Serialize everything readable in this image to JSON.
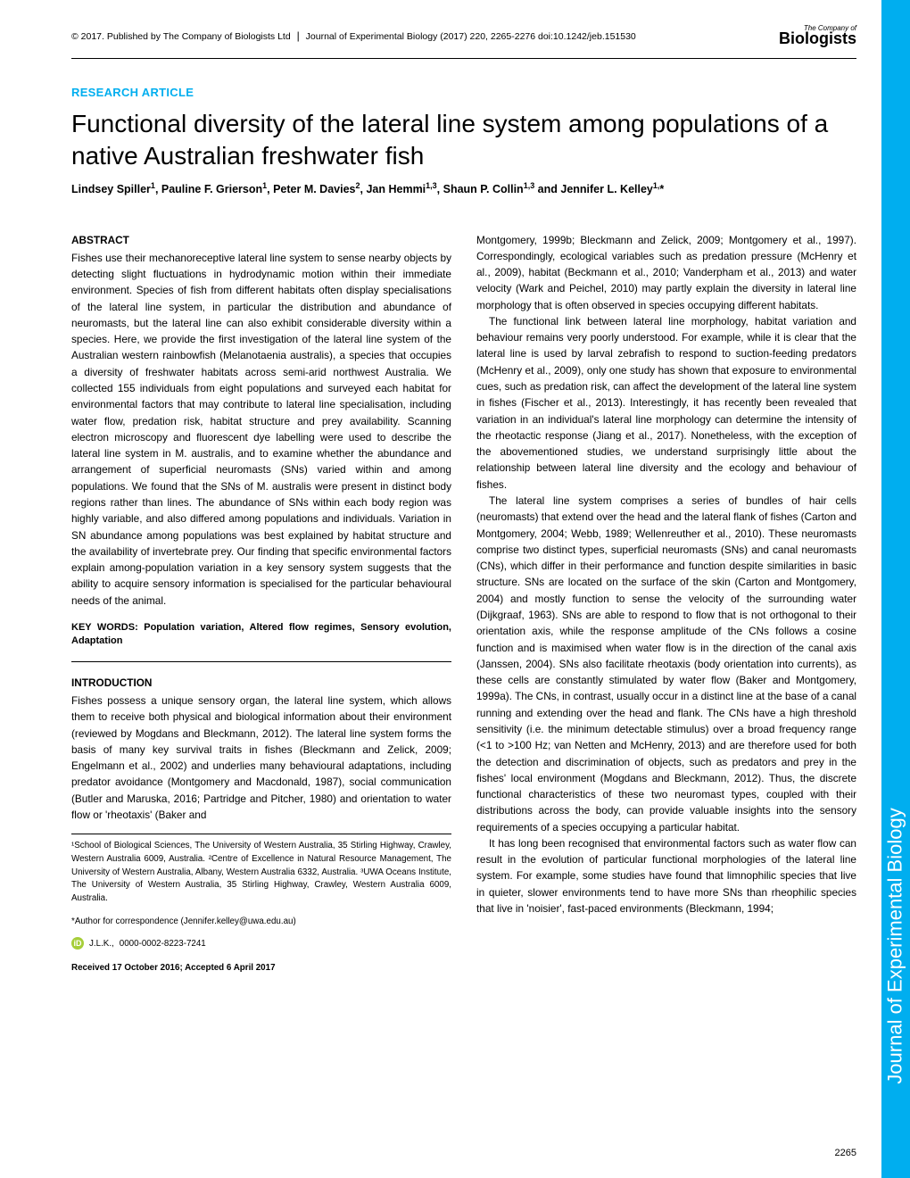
{
  "header": {
    "copyright": "© 2017. Published by The Company of Biologists Ltd",
    "citation": "Journal of Experimental Biology (2017) 220, 2265-2276 doi:10.1242/jeb.151530",
    "logo_small": "The Company of",
    "logo_big": "Biologists"
  },
  "article_type": "RESEARCH ARTICLE",
  "title": "Functional diversity of the lateral line system among populations of a native Australian freshwater fish",
  "authors_html": "Lindsey Spiller¹, Pauline F. Grierson¹, Peter M. Davies², Jan Hemmi¹,³, Shaun P. Collin¹,³ and Jennifer L. Kelley¹,*",
  "abstract_head": "ABSTRACT",
  "abstract": "Fishes use their mechanoreceptive lateral line system to sense nearby objects by detecting slight fluctuations in hydrodynamic motion within their immediate environment. Species of fish from different habitats often display specialisations of the lateral line system, in particular the distribution and abundance of neuromasts, but the lateral line can also exhibit considerable diversity within a species. Here, we provide the first investigation of the lateral line system of the Australian western rainbowfish (Melanotaenia australis), a species that occupies a diversity of freshwater habitats across semi-arid northwest Australia. We collected 155 individuals from eight populations and surveyed each habitat for environmental factors that may contribute to lateral line specialisation, including water flow, predation risk, habitat structure and prey availability. Scanning electron microscopy and fluorescent dye labelling were used to describe the lateral line system in M. australis, and to examine whether the abundance and arrangement of superficial neuromasts (SNs) varied within and among populations. We found that the SNs of M. australis were present in distinct body regions rather than lines. The abundance of SNs within each body region was highly variable, and also differed among populations and individuals. Variation in SN abundance among populations was best explained by habitat structure and the availability of invertebrate prey. Our finding that specific environmental factors explain among-population variation in a key sensory system suggests that the ability to acquire sensory information is specialised for the particular behavioural needs of the animal.",
  "keywords": "KEY WORDS: Population variation, Altered flow regimes, Sensory evolution, Adaptation",
  "intro_head": "INTRODUCTION",
  "intro_p1": "Fishes possess a unique sensory organ, the lateral line system, which allows them to receive both physical and biological information about their environment (reviewed by Mogdans and Bleckmann, 2012). The lateral line system forms the basis of many key survival traits in fishes (Bleckmann and Zelick, 2009; Engelmann et al., 2002) and underlies many behavioural adaptations, including predator avoidance (Montgomery and Macdonald, 1987), social communication (Butler and Maruska, 2016; Partridge and Pitcher, 1980) and orientation to water flow or 'rheotaxis' (Baker and",
  "right_p1": "Montgomery, 1999b; Bleckmann and Zelick, 2009; Montgomery et al., 1997). Correspondingly, ecological variables such as predation pressure (McHenry et al., 2009), habitat (Beckmann et al., 2010; Vanderpham et al., 2013) and water velocity (Wark and Peichel, 2010) may partly explain the diversity in lateral line morphology that is often observed in species occupying different habitats.",
  "right_p2": "The functional link between lateral line morphology, habitat variation and behaviour remains very poorly understood. For example, while it is clear that the lateral line is used by larval zebrafish to respond to suction-feeding predators (McHenry et al., 2009), only one study has shown that exposure to environmental cues, such as predation risk, can affect the development of the lateral line system in fishes (Fischer et al., 2013). Interestingly, it has recently been revealed that variation in an individual's lateral line morphology can determine the intensity of the rheotactic response (Jiang et al., 2017). Nonetheless, with the exception of the abovementioned studies, we understand surprisingly little about the relationship between lateral line diversity and the ecology and behaviour of fishes.",
  "right_p3": "The lateral line system comprises a series of bundles of hair cells (neuromasts) that extend over the head and the lateral flank of fishes (Carton and Montgomery, 2004; Webb, 1989; Wellenreuther et al., 2010). These neuromasts comprise two distinct types, superficial neuromasts (SNs) and canal neuromasts (CNs), which differ in their performance and function despite similarities in basic structure. SNs are located on the surface of the skin (Carton and Montgomery, 2004) and mostly function to sense the velocity of the surrounding water (Dijkgraaf, 1963). SNs are able to respond to flow that is not orthogonal to their orientation axis, while the response amplitude of the CNs follows a cosine function and is maximised when water flow is in the direction of the canal axis (Janssen, 2004). SNs also facilitate rheotaxis (body orientation into currents), as these cells are constantly stimulated by water flow (Baker and Montgomery, 1999a). The CNs, in contrast, usually occur in a distinct line at the base of a canal running and extending over the head and flank. The CNs have a high threshold sensitivity (i.e. the minimum detectable stimulus) over a broad frequency range (<1 to >100 Hz; van Netten and McHenry, 2013) and are therefore used for both the detection and discrimination of objects, such as predators and prey in the fishes' local environment (Mogdans and Bleckmann, 2012). Thus, the discrete functional characteristics of these two neuromast types, coupled with their distributions across the body, can provide valuable insights into the sensory requirements of a species occupying a particular habitat.",
  "right_p4": "It has long been recognised that environmental factors such as water flow can result in the evolution of particular functional morphologies of the lateral line system. For example, some studies have found that limnophilic species that live in quieter, slower environments tend to have more SNs than rheophilic species that live in 'noisier', fast-paced environments (Bleckmann, 1994;",
  "affiliations": "¹School of Biological Sciences, The University of Western Australia, 35 Stirling Highway, Crawley, Western Australia 6009, Australia. ²Centre of Excellence in Natural Resource Management, The University of Western Australia, Albany, Western Australia 6332, Australia. ³UWA Oceans Institute, The University of Western Australia, 35 Stirling Highway, Crawley, Western Australia 6009, Australia.",
  "correspondence": "*Author for correspondence (Jennifer.kelley@uwa.edu.au)",
  "orcid_author": "J.L.K.,",
  "orcid_id": "0000-0002-8223-7241",
  "received": "Received 17 October 2016; Accepted 6 April 2017",
  "side_label": "Journal of Experimental Biology",
  "page_number": "2265",
  "colors": {
    "accent": "#00aeef",
    "text": "#000000",
    "orcid": "#a6ce39",
    "background": "#ffffff"
  }
}
